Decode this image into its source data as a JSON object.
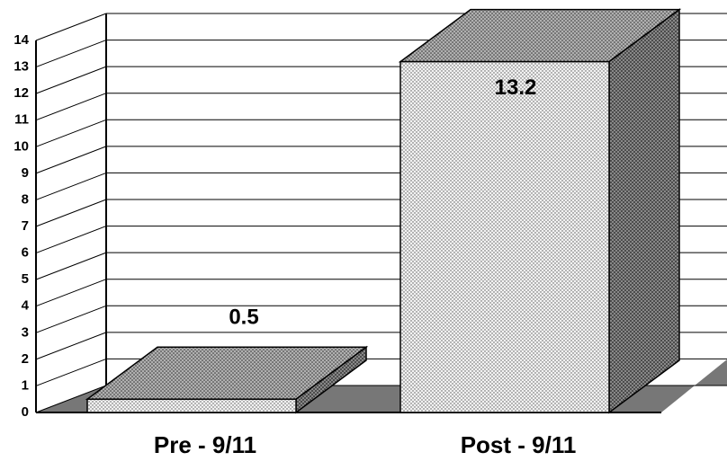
{
  "chart_data": {
    "type": "bar3d",
    "categories": [
      "Pre - 9/11",
      "Post - 9/11"
    ],
    "values": [
      0.5,
      13.2
    ],
    "ylim": [
      0,
      14
    ],
    "yticks": [
      0,
      1,
      2,
      3,
      4,
      5,
      6,
      7,
      8,
      9,
      10,
      11,
      12,
      13,
      14
    ],
    "grid": true
  }
}
